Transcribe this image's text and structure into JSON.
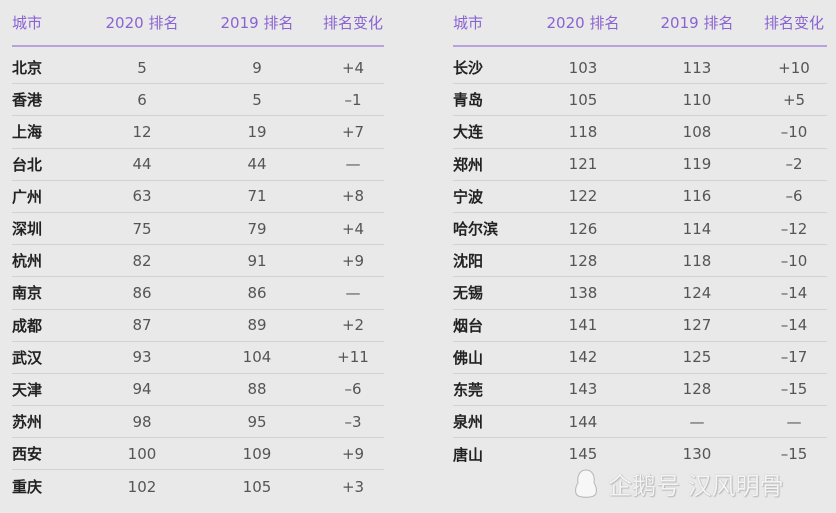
{
  "headers": {
    "city": "城市",
    "rank2020": "2020 排名",
    "rank2019": "2019 排名",
    "change": "排名变化"
  },
  "left_table": [
    {
      "city": "北京",
      "rank2020": "5",
      "rank2019": "9",
      "change": "+4"
    },
    {
      "city": "香港",
      "rank2020": "6",
      "rank2019": "5",
      "change": "–1"
    },
    {
      "city": "上海",
      "rank2020": "12",
      "rank2019": "19",
      "change": "+7"
    },
    {
      "city": "台北",
      "rank2020": "44",
      "rank2019": "44",
      "change": "—"
    },
    {
      "city": "广州",
      "rank2020": "63",
      "rank2019": "71",
      "change": "+8"
    },
    {
      "city": "深圳",
      "rank2020": "75",
      "rank2019": "79",
      "change": "+4"
    },
    {
      "city": "杭州",
      "rank2020": "82",
      "rank2019": "91",
      "change": "+9"
    },
    {
      "city": "南京",
      "rank2020": "86",
      "rank2019": "86",
      "change": "—"
    },
    {
      "city": "成都",
      "rank2020": "87",
      "rank2019": "89",
      "change": "+2"
    },
    {
      "city": "武汉",
      "rank2020": "93",
      "rank2019": "104",
      "change": "+11"
    },
    {
      "city": "天津",
      "rank2020": "94",
      "rank2019": "88",
      "change": "–6"
    },
    {
      "city": "苏州",
      "rank2020": "98",
      "rank2019": "95",
      "change": "–3"
    },
    {
      "city": "西安",
      "rank2020": "100",
      "rank2019": "109",
      "change": "+9"
    },
    {
      "city": "重庆",
      "rank2020": "102",
      "rank2019": "105",
      "change": "+3"
    }
  ],
  "right_table": [
    {
      "city": "长沙",
      "rank2020": "103",
      "rank2019": "113",
      "change": "+10"
    },
    {
      "city": "青岛",
      "rank2020": "105",
      "rank2019": "110",
      "change": "+5"
    },
    {
      "city": "大连",
      "rank2020": "118",
      "rank2019": "108",
      "change": "–10"
    },
    {
      "city": "郑州",
      "rank2020": "121",
      "rank2019": "119",
      "change": "–2"
    },
    {
      "city": "宁波",
      "rank2020": "122",
      "rank2019": "116",
      "change": "–6"
    },
    {
      "city": "哈尔滨",
      "rank2020": "126",
      "rank2019": "114",
      "change": "–12"
    },
    {
      "city": "沈阳",
      "rank2020": "128",
      "rank2019": "118",
      "change": "–10"
    },
    {
      "city": "无锡",
      "rank2020": "138",
      "rank2019": "124",
      "change": "–14"
    },
    {
      "city": "烟台",
      "rank2020": "141",
      "rank2019": "127",
      "change": "–14"
    },
    {
      "city": "佛山",
      "rank2020": "142",
      "rank2019": "125",
      "change": "–17"
    },
    {
      "city": "东莞",
      "rank2020": "143",
      "rank2019": "128",
      "change": "–15"
    },
    {
      "city": "泉州",
      "rank2020": "144",
      "rank2019": "—",
      "change": "—"
    },
    {
      "city": "唐山",
      "rank2020": "145",
      "rank2019": "130",
      "change": "–15"
    }
  ],
  "watermark": {
    "icon": "penguin-icon",
    "text": "企鹅号 汉风明骨"
  },
  "colors": {
    "header_text": "#8a63d2",
    "header_rule": "#b9a2dc",
    "background": "#e9e9e9"
  }
}
